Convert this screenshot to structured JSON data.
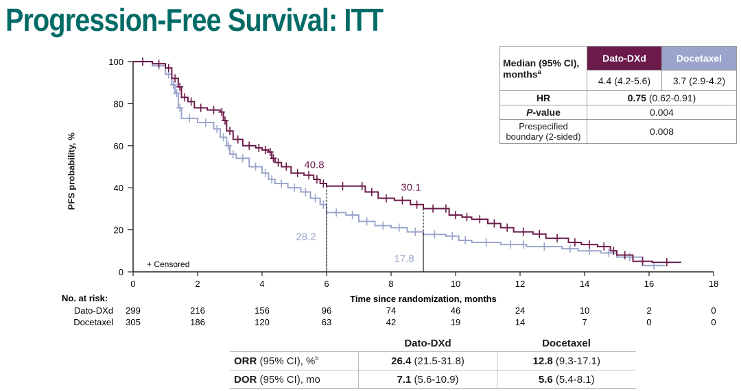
{
  "title": "Progression-Free Survival: ITT",
  "colors": {
    "dato": "#6b1a4a",
    "doce": "#9aa4cc",
    "title": "#006b66"
  },
  "median_table": {
    "row_label_line1": "Median (95% CI),",
    "row_label_line2": "months",
    "row_label_sup": "a",
    "col_dato": "Dato-DXd",
    "col_doce": "Docetaxel",
    "median_dato": "4.4 (4.2-5.6)",
    "median_doce": "3.7 (2.9-4.2)",
    "hr_label": "HR",
    "hr_value_bold": "0.75",
    "hr_value_ci": " (0.62-0.91)",
    "p_label_italic": "P",
    "p_label_rest": "-value",
    "p_value": "0.004",
    "boundary_label_line1": "Prespecified",
    "boundary_label_line2": "boundary (2-sided)",
    "boundary_value": "0.008"
  },
  "risk_table": {
    "header": "No. at risk:",
    "rows": [
      {
        "label": "Dato-DXd",
        "values": [
          "299",
          "216",
          "156",
          "96",
          "74",
          "46",
          "24",
          "10",
          "2",
          "0"
        ]
      },
      {
        "label": "Docetaxel",
        "values": [
          "305",
          "186",
          "120",
          "63",
          "42",
          "19",
          "14",
          "7",
          "0",
          "0"
        ]
      }
    ]
  },
  "response_table": {
    "col_dato": "Dato-DXd",
    "col_doce": "Docetaxel",
    "rows": [
      {
        "label_bold": "ORR",
        "label_rest": " (95% CI), %",
        "label_sup": "b",
        "dato_bold": "26.4",
        "dato_rest": " (21.5-31.8)",
        "doce_bold": "12.8",
        "doce_rest": " (9.3-17.1)"
      },
      {
        "label_bold": "DOR",
        "label_rest": " (95% CI), mo",
        "label_sup": "",
        "dato_bold": "7.1",
        "dato_rest": " (5.6-10.9)",
        "doce_bold": "5.6",
        "doce_rest": " (5.4-8.1)"
      }
    ]
  },
  "chart_data": {
    "type": "line",
    "title": "Progression-Free Survival: ITT",
    "xlabel": "Time since randomization, months",
    "ylabel": "PFS probability, %",
    "xlim": [
      0,
      18
    ],
    "ylim": [
      0,
      100
    ],
    "xticks": [
      "0",
      "2",
      "4",
      "6",
      "8",
      "10",
      "12",
      "14",
      "16",
      "18"
    ],
    "yticks": [
      "0",
      "20",
      "40",
      "60",
      "80",
      "100"
    ],
    "legend_note": "+ Censored",
    "grid": false,
    "series": [
      {
        "name": "Dato-DXd",
        "x": [
          0,
          0.6,
          1.0,
          1.2,
          1.4,
          1.5,
          1.7,
          1.9,
          2.3,
          2.7,
          2.8,
          2.9,
          3.1,
          3.4,
          3.8,
          4.0,
          4.2,
          4.3,
          4.4,
          4.6,
          4.9,
          5.3,
          5.6,
          5.8,
          6.0,
          7.0,
          7.2,
          7.6,
          8.1,
          8.6,
          9.0,
          9.6,
          9.8,
          10.2,
          10.5,
          11.0,
          11.4,
          11.8,
          12.4,
          12.8,
          13.5,
          13.9,
          14.4,
          14.8,
          15.0,
          15.5,
          16.1,
          17.0
        ],
        "y": [
          100,
          99,
          97,
          92,
          88,
          83,
          81,
          78,
          77,
          76,
          72,
          67,
          63,
          60,
          59,
          58,
          57,
          54,
          52,
          50,
          47,
          46,
          44,
          42,
          40.8,
          40.8,
          38,
          35,
          34,
          32,
          30.1,
          30.1,
          27,
          26,
          25,
          23,
          21,
          19,
          18,
          16,
          14,
          13,
          12,
          10,
          8,
          5,
          4.5,
          4.5
        ],
        "annotations": [
          {
            "x": 6,
            "y": 40.8,
            "label": "40.8"
          },
          {
            "x": 9,
            "y": 30.1,
            "label": "30.1"
          }
        ]
      },
      {
        "name": "Docetaxel",
        "x": [
          0,
          0.6,
          1.0,
          1.2,
          1.3,
          1.4,
          1.5,
          2.0,
          2.5,
          2.7,
          2.9,
          3.0,
          3.2,
          3.6,
          4.0,
          4.2,
          4.4,
          4.8,
          5.2,
          5.5,
          5.8,
          6.0,
          6.6,
          7.0,
          7.5,
          8.0,
          8.5,
          9.0,
          9.7,
          10.1,
          10.5,
          11.4,
          12.0,
          12.2,
          13.3,
          13.8,
          14.5,
          15.0,
          15.8,
          16.5
        ],
        "y": [
          100,
          98,
          94,
          89,
          85,
          78,
          73,
          71,
          68,
          64,
          60,
          56,
          54,
          50,
          47,
          44,
          42,
          40,
          38,
          35,
          32,
          28.2,
          27,
          24,
          22,
          21,
          19,
          17.8,
          17,
          15,
          14,
          13,
          13,
          12,
          11,
          10,
          9,
          7,
          3,
          3
        ],
        "annotations": [
          {
            "x": 6,
            "y": 28.2,
            "label": "28.2"
          },
          {
            "x": 9,
            "y": 17.8,
            "label": "17.8"
          }
        ]
      }
    ]
  }
}
